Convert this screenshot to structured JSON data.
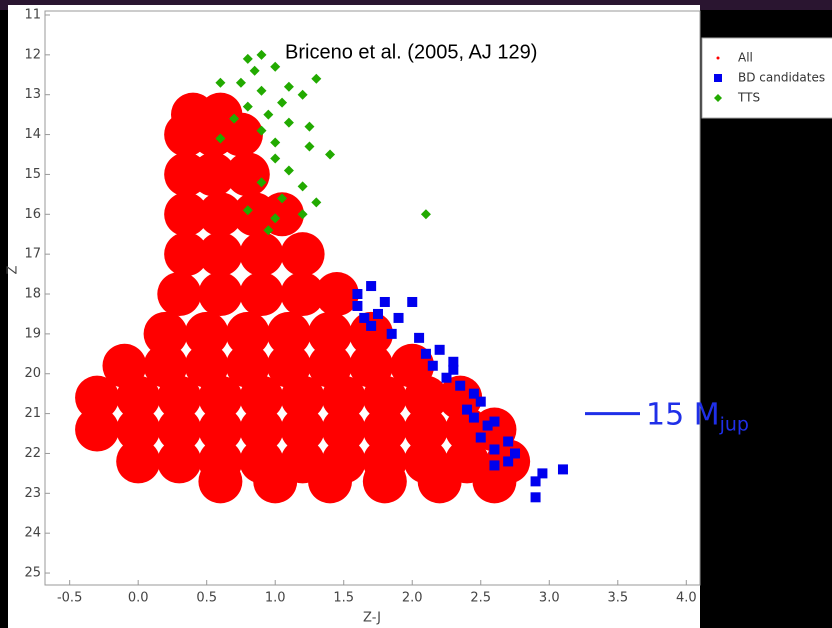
{
  "chart_data": {
    "type": "scatter",
    "title": "Briceno et al. (2005, AJ 129)",
    "xlabel": "Z-J",
    "ylabel": "Z",
    "xlim": [
      -0.68,
      4.1
    ],
    "ylim": [
      10.9,
      25.3
    ],
    "y_inverted": true,
    "xticks": [
      {
        "value": -0.5,
        "label": "-0.5"
      },
      {
        "value": 0,
        "label": "0.0"
      },
      0.5,
      {
        "value": 1,
        "label": "1.0"
      },
      1.5,
      {
        "value": 2,
        "label": "2.0"
      },
      2.5,
      {
        "value": 3,
        "label": "3.0"
      },
      3.5,
      {
        "value": 4,
        "label": "4.0"
      }
    ],
    "yticks": [
      11,
      12,
      13,
      14,
      15,
      16,
      17,
      18,
      19,
      20,
      21,
      22,
      23,
      24,
      25
    ],
    "legend": "upper right",
    "annotation": {
      "text": "15 M",
      "subscript": "jup",
      "y": 21,
      "color": "#1f2fe8"
    },
    "series": [
      {
        "name": "All",
        "color": "#ff0000",
        "marker": "dot",
        "x": [
          0.4,
          0.6,
          0.35,
          0.55,
          0.75,
          0.35,
          0.55,
          0.8,
          0.35,
          0.6,
          0.85,
          1.05,
          0.35,
          0.6,
          0.9,
          1.2,
          0.3,
          0.6,
          0.9,
          1.2,
          1.45,
          0.2,
          0.5,
          0.8,
          1.1,
          1.4,
          1.7,
          -0.1,
          0.2,
          0.5,
          0.8,
          1.1,
          1.4,
          1.7,
          2.0,
          -0.3,
          0.0,
          0.3,
          0.6,
          0.9,
          1.2,
          1.5,
          1.8,
          2.1,
          2.35,
          -0.3,
          0.0,
          0.3,
          0.6,
          0.9,
          1.2,
          1.5,
          1.8,
          2.1,
          2.4,
          2.6,
          0.0,
          0.3,
          0.6,
          0.9,
          1.2,
          1.5,
          1.8,
          2.1,
          2.4,
          2.7,
          0.6,
          1.0,
          1.4,
          1.8,
          2.2,
          2.6
        ],
        "y": [
          13.5,
          13.5,
          14,
          14,
          14,
          15,
          15,
          15,
          16,
          16,
          16,
          16,
          17,
          17,
          17,
          17,
          18,
          18,
          18,
          18,
          18,
          19,
          19,
          19,
          19,
          19,
          19,
          19.8,
          19.8,
          19.8,
          19.8,
          19.8,
          19.8,
          19.8,
          19.8,
          20.6,
          20.6,
          20.6,
          20.6,
          20.6,
          20.6,
          20.6,
          20.6,
          20.6,
          20.6,
          21.4,
          21.4,
          21.4,
          21.4,
          21.4,
          21.4,
          21.4,
          21.4,
          21.4,
          21.4,
          21.4,
          22.2,
          22.2,
          22.2,
          22.2,
          22.2,
          22.2,
          22.2,
          22.2,
          22.2,
          22.2,
          22.7,
          22.7,
          22.7,
          22.7,
          22.7,
          22.7
        ]
      },
      {
        "name": "BD candidates",
        "color": "#0000ee",
        "marker": "square",
        "x": [
          1.6,
          1.6,
          1.65,
          1.7,
          1.75,
          1.7,
          1.8,
          1.9,
          1.85,
          2.0,
          2.05,
          2.1,
          2.15,
          2.2,
          2.3,
          2.25,
          2.35,
          2.3,
          2.45,
          2.4,
          2.5,
          2.45,
          2.55,
          2.5,
          2.6,
          2.7,
          2.75,
          2.6,
          2.7,
          2.9,
          2.95,
          2.9,
          3.1,
          2.6
        ],
        "y": [
          18,
          18.3,
          18.6,
          18.8,
          18.5,
          17.8,
          18.2,
          18.6,
          19,
          18.2,
          19.1,
          19.5,
          19.8,
          19.4,
          19.7,
          20.1,
          20.3,
          19.9,
          20.5,
          20.9,
          20.7,
          21.1,
          21.3,
          21.6,
          21.2,
          21.7,
          22.0,
          22.3,
          22.2,
          22.7,
          22.5,
          23.1,
          22.4,
          21.9
        ]
      },
      {
        "name": "TTS",
        "color": "#22aa00",
        "marker": "diamond",
        "x": [
          0.8,
          0.9,
          0.85,
          1.0,
          0.75,
          0.6,
          0.9,
          1.1,
          1.3,
          1.2,
          0.8,
          0.95,
          1.05,
          0.7,
          0.9,
          1.0,
          1.1,
          1.25,
          0.6,
          1.0,
          1.1,
          1.2,
          0.9,
          1.05,
          1.3,
          0.8,
          1.0,
          1.2,
          0.95,
          2.1,
          1.4,
          1.25
        ],
        "y": [
          12.1,
          12.0,
          12.4,
          12.3,
          12.7,
          12.7,
          12.9,
          12.8,
          12.6,
          13.0,
          13.3,
          13.5,
          13.2,
          13.6,
          13.9,
          14.2,
          13.7,
          13.8,
          14.1,
          14.6,
          14.9,
          15.3,
          15.2,
          15.6,
          15.7,
          15.9,
          16.1,
          16.0,
          16.4,
          16.0,
          14.5,
          14.3
        ]
      }
    ]
  }
}
